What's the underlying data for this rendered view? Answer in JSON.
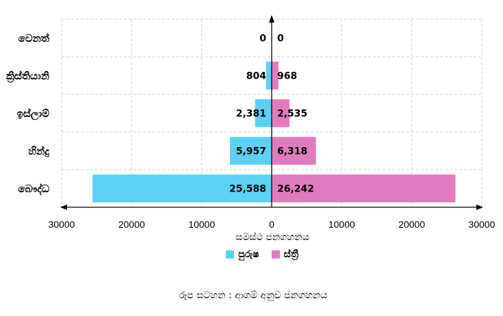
{
  "chart_data": {
    "type": "bar",
    "orientation": "horizontal-diverging",
    "categories": [
      "බෞද්ධ",
      "හින්දු",
      "ඉස්ලාම්",
      "ක්‍රිස්තියානි",
      "වෙනත්"
    ],
    "series": [
      {
        "name": "පුරුෂ",
        "values": [
          25588,
          5957,
          2381,
          804,
          0
        ],
        "labels": [
          "25,588",
          "5,957",
          "2,381",
          "804",
          "0"
        ],
        "color": "#5bd1f5",
        "direction": "left"
      },
      {
        "name": "ස්ත්‍රී",
        "values": [
          26242,
          6318,
          2535,
          968,
          0
        ],
        "labels": [
          "26,242",
          "6,318",
          "2,535",
          "968",
          "0"
        ],
        "color": "#e07cbe",
        "direction": "right"
      }
    ],
    "xlim": [
      -30000,
      30000
    ],
    "xticks": [
      -30000,
      -20000,
      -10000,
      0,
      10000,
      20000,
      30000
    ],
    "xtick_labels": [
      "30000",
      "20000",
      "10000",
      "0",
      "10000",
      "20000",
      "30000"
    ],
    "xlabel": "සමස්ථ ජනගහනය",
    "grid": true,
    "legend_position": "bottom"
  },
  "caption": "රූප සටහන : ආගම් අනුව ජනගහනය",
  "colors": {
    "male": "#5bd1f5",
    "female": "#e07cbe",
    "grid": "#d0d0d0"
  }
}
